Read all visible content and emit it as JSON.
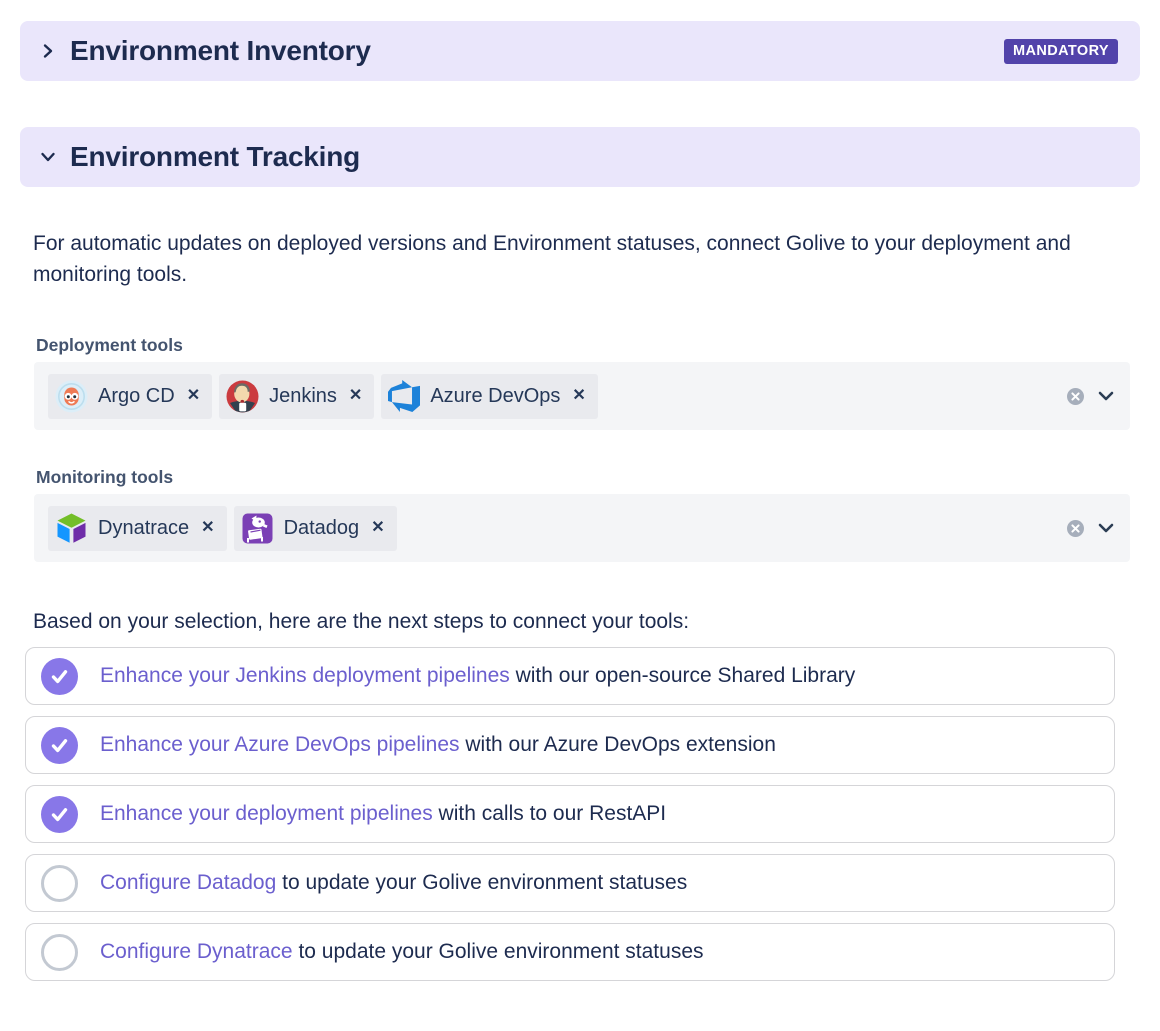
{
  "colors": {
    "accent": "#5243AA",
    "header_bg": "#EAE6FB",
    "text": "#1d2b4f",
    "label": "#44546F",
    "field_bg": "#F4F5F7",
    "tag_bg": "#E9EAEE",
    "tag_text": "#253858",
    "link": "#6B5FCE",
    "check": "#8877E8",
    "circle_border": "#C3C9D2"
  },
  "sections": {
    "inventory": {
      "title": "Environment Inventory",
      "badge": "MANDATORY",
      "state": "collapsed"
    },
    "tracking": {
      "title": "Environment Tracking",
      "state": "expanded"
    }
  },
  "intro": "For automatic updates on deployed versions and Environment statuses, connect Golive to your deployment and monitoring tools.",
  "deployment": {
    "label": "Deployment tools",
    "tags": [
      {
        "name": "Argo CD",
        "icon": "argo-cd-icon",
        "remove_label": "✕"
      },
      {
        "name": "Jenkins",
        "icon": "jenkins-icon",
        "remove_label": "✕"
      },
      {
        "name": "Azure DevOps",
        "icon": "azure-devops-icon",
        "remove_label": "✕"
      }
    ],
    "clear_icon": "clear-all-icon",
    "dropdown_icon": "chevron-down-icon"
  },
  "monitoring": {
    "label": "Monitoring tools",
    "tags": [
      {
        "name": "Dynatrace",
        "icon": "dynatrace-icon",
        "remove_label": "✕"
      },
      {
        "name": "Datadog",
        "icon": "datadog-icon",
        "remove_label": "✕"
      }
    ],
    "clear_icon": "clear-all-icon",
    "dropdown_icon": "chevron-down-icon"
  },
  "steps": {
    "intro": "Based on your selection, here are the next steps to connect your tools:",
    "items": [
      {
        "checked": true,
        "link": "Enhance your Jenkins deployment pipelines",
        "rest": " with our open-source Shared Library"
      },
      {
        "checked": true,
        "link": "Enhance your Azure DevOps pipelines",
        "rest": " with our Azure DevOps extension"
      },
      {
        "checked": true,
        "link": "Enhance your deployment pipelines",
        "rest": " with calls to our RestAPI"
      },
      {
        "checked": false,
        "link": "Configure Datadog",
        "rest": " to update your Golive environment statuses"
      },
      {
        "checked": false,
        "link": "Configure Dynatrace",
        "rest": " to update your Golive environment statuses"
      }
    ]
  }
}
